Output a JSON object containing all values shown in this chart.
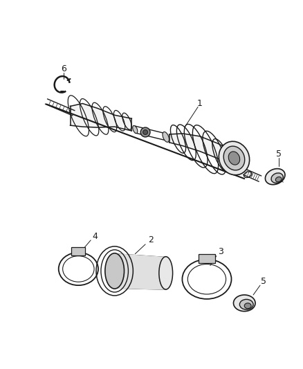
{
  "background_color": "#ffffff",
  "fig_width": 4.38,
  "fig_height": 5.33,
  "dpi": 100,
  "line_color": "#1a1a1a",
  "fill_light": "#e8e8e8",
  "fill_mid": "#c8c8c8",
  "fill_dark": "#909090"
}
